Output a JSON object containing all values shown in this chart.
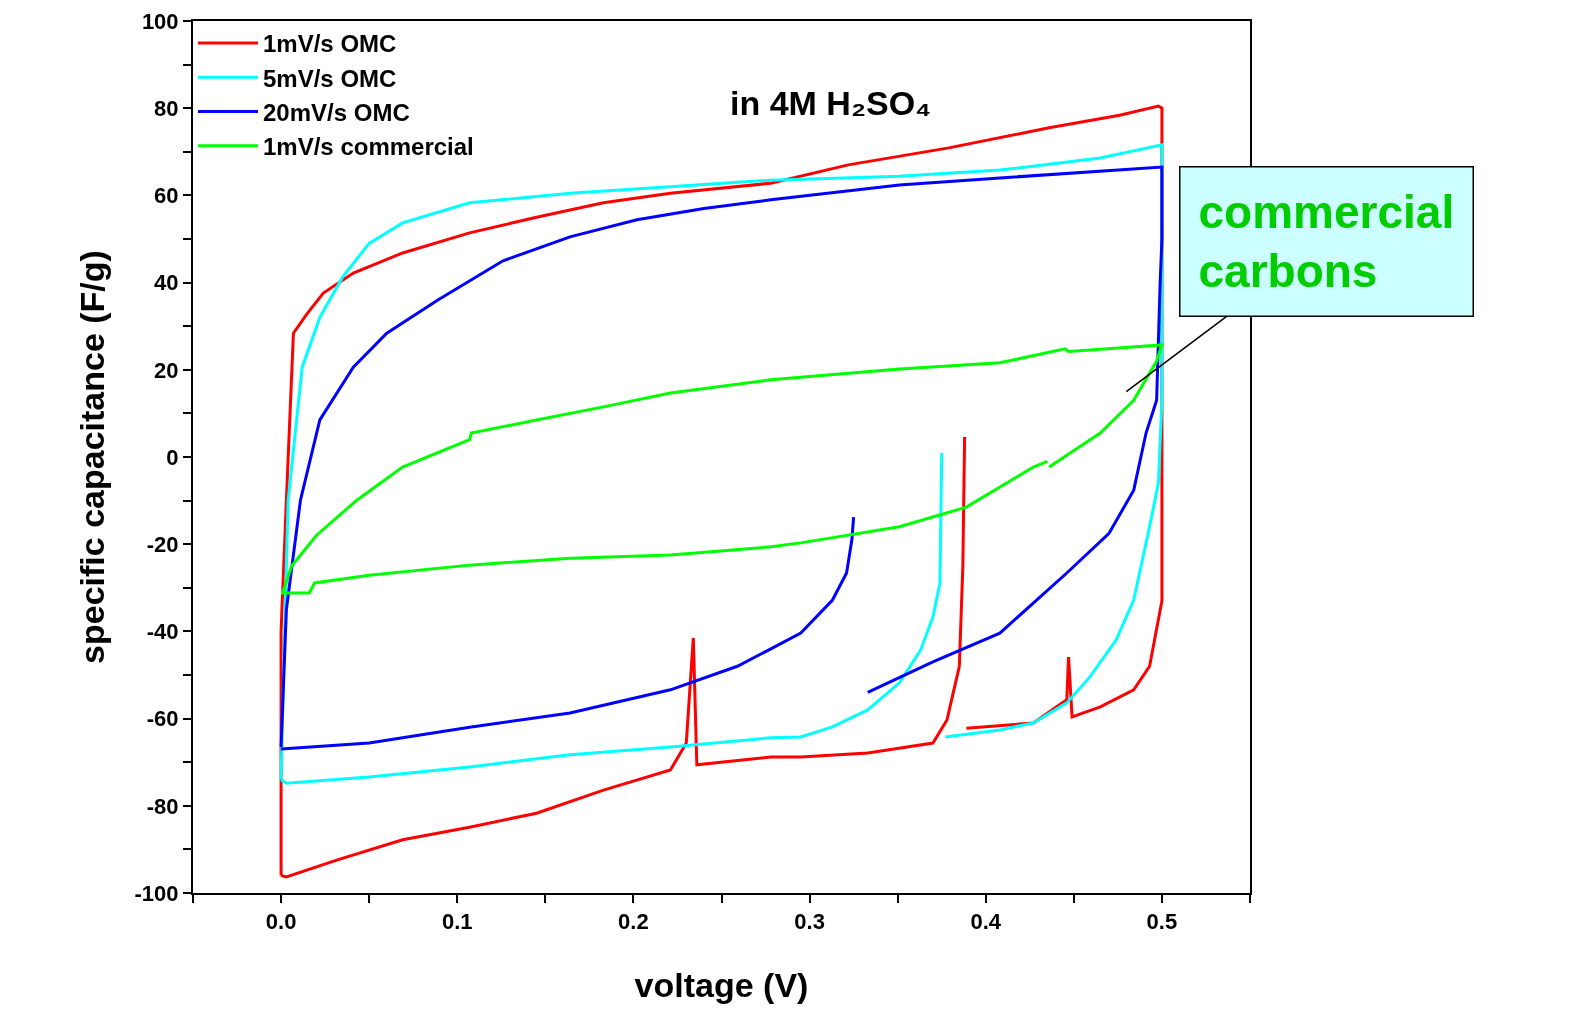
{
  "chart_data": {
    "type": "line",
    "title": "in 4M H₂SO₄",
    "xlabel": "voltage (V)",
    "ylabel": "specific capacitance (F/g)",
    "xlim": [
      -0.05,
      0.55
    ],
    "ylim": [
      -100,
      100
    ],
    "xticks": [
      {
        "value": -0.05,
        "label": null
      },
      {
        "value": 0,
        "label": "0.0"
      },
      {
        "value": 0.05,
        "label": null
      },
      {
        "value": 0.1,
        "label": "0.1"
      },
      {
        "value": 0.15,
        "label": null
      },
      {
        "value": 0.2,
        "label": "0.2"
      },
      {
        "value": 0.25,
        "label": null
      },
      {
        "value": 0.3,
        "label": "0.3"
      },
      {
        "value": 0.35,
        "label": null
      },
      {
        "value": 0.4,
        "label": "0.4"
      },
      {
        "value": 0.45,
        "label": null
      },
      {
        "value": 0.5,
        "label": "0.5"
      },
      {
        "value": 0.55,
        "label": null
      }
    ],
    "yticks": [
      -100,
      {
        "value": -90,
        "label": null
      },
      -80,
      {
        "value": -70,
        "label": null
      },
      -60,
      {
        "value": -50,
        "label": null
      },
      -40,
      {
        "value": -30,
        "label": null
      },
      -20,
      {
        "value": -10,
        "label": null
      },
      0,
      {
        "value": 10,
        "label": null
      },
      20,
      {
        "value": 30,
        "label": null
      },
      40,
      {
        "value": 50,
        "label": null
      },
      60,
      {
        "value": 70,
        "label": null
      },
      80,
      {
        "value": 90,
        "label": null
      },
      100
    ],
    "legend": "top left",
    "marker": "none",
    "line_style": "solid",
    "annotations": [
      "commercial\ncarbons"
    ],
    "series": [
      {
        "name": "1mV/s OMC",
        "color": "#ff0000",
        "x": [
          0.0,
          0.0,
          0.003,
          0.007,
          0.015,
          0.024,
          0.041,
          0.069,
          0.107,
          0.145,
          0.183,
          0.221,
          0.278,
          0.322,
          0.379,
          0.436,
          0.476,
          0.498,
          0.5,
          0.5,
          0.5,
          0.493,
          0.484,
          0.465,
          0.449,
          0.447,
          0.446,
          0.427,
          0.389,
          null,
          0.388,
          0.387,
          0.385,
          0.378,
          0.37,
          0.333,
          0.295,
          0.278,
          0.236,
          0.234,
          0.23,
          0.221,
          0.183,
          0.145,
          0.107,
          0.069,
          0.032,
          0.003,
          0.0
        ],
        "values": [
          -96,
          -40,
          -10,
          28.4,
          33,
          37.6,
          42.2,
          46.8,
          51.4,
          55,
          58.3,
          60.5,
          62.8,
          67,
          70.9,
          75.5,
          78.4,
          80.5,
          80,
          -10,
          -33,
          -48,
          -53.4,
          -57.3,
          -59.6,
          -45.9,
          -55.7,
          -61,
          -62.2,
          null,
          4.6,
          -25,
          -48,
          -60.3,
          -65.6,
          -67.9,
          -68.8,
          -68.8,
          -70.6,
          -41.5,
          -65.6,
          -71.8,
          -76.4,
          -81.7,
          -84.9,
          -87.8,
          -92.4,
          -96.3,
          -96
        ]
      },
      {
        "name": "5mV/s OMC",
        "color": "#00ffff",
        "x": [
          0.0,
          0.002,
          0.004,
          0.012,
          0.022,
          0.035,
          0.05,
          0.069,
          0.107,
          0.164,
          0.221,
          0.278,
          0.351,
          0.408,
          0.465,
          0.5,
          0.5,
          0.5,
          0.498,
          0.493,
          0.484,
          0.474,
          0.459,
          0.446,
          0.427,
          0.408,
          0.377,
          null,
          0.375,
          0.374,
          0.37,
          0.363,
          0.351,
          0.333,
          0.313,
          0.295,
          0.278,
          0.221,
          0.164,
          0.107,
          0.05,
          0.003,
          0.0
        ],
        "values": [
          -74,
          -40,
          -10,
          20.6,
          32,
          41.3,
          49,
          53.7,
          58.3,
          60.5,
          62,
          63.5,
          64.4,
          65.8,
          68.6,
          71.6,
          40,
          13,
          -6,
          -16,
          -32.8,
          -42,
          -50.5,
          -56.4,
          -61,
          -62.6,
          -64.2,
          null,
          0.9,
          -28.9,
          -36.7,
          -44.3,
          -51.8,
          -58,
          -61.9,
          -64.2,
          -64.4,
          -66.5,
          -68.3,
          -71.1,
          -73.4,
          -74.8,
          -74
        ]
      },
      {
        "name": "20mV/s OMC",
        "color": "#0000ff",
        "x": [
          0.0,
          0.003,
          0.011,
          0.022,
          0.041,
          0.06,
          0.089,
          0.126,
          0.164,
          0.202,
          0.24,
          0.278,
          0.351,
          0.408,
          0.5,
          0.5,
          0.499,
          0.497,
          0.491,
          0.484,
          0.47,
          0.446,
          0.408,
          0.37,
          0.333,
          null,
          0.325,
          0.324,
          0.321,
          0.313,
          0.295,
          0.278,
          0.259,
          0.221,
          0.164,
          0.107,
          0.05,
          0.0
        ],
        "values": [
          -66.5,
          -35,
          -9.9,
          8.5,
          20.6,
          28.4,
          36,
          45,
          50.5,
          54.4,
          57,
          59,
          62.4,
          64,
          66.5,
          50,
          40,
          13,
          5.5,
          -7.6,
          -17.5,
          -26.6,
          -40.4,
          -47,
          -54,
          null,
          -13.8,
          -19,
          -26.6,
          -32.8,
          -40.4,
          -44,
          -48,
          -53.4,
          -58.7,
          -62,
          -65.6,
          -67
        ]
      },
      {
        "name": "1mV/s commercial",
        "color": "#00ff00",
        "x": [
          0.0,
          0.016,
          0.019,
          0.05,
          0.107,
          0.164,
          0.221,
          0.278,
          0.295,
          0.351,
          0.389,
          0.427,
          0.435,
          null,
          0.436,
          0.465,
          0.484,
          0.497,
          0.5,
          0.447,
          0.445,
          0.408,
          0.351,
          0.278,
          0.221,
          0.183,
          0.145,
          0.108,
          0.107,
          0.069,
          0.043,
          0.02,
          0.006,
          0.001
        ],
        "values": [
          -31.2,
          -31.2,
          -28.9,
          -27.1,
          -24.8,
          -23.2,
          -22.5,
          -20.6,
          -19.7,
          -16,
          -11.5,
          -2.3,
          -1,
          null,
          -2.3,
          5.5,
          13,
          22,
          25.7,
          24.2,
          24.8,
          21.6,
          20.2,
          17.7,
          14.7,
          11.5,
          8.5,
          5.5,
          4,
          -2.3,
          -9.9,
          -18,
          -25,
          -31
        ]
      }
    ]
  }
}
